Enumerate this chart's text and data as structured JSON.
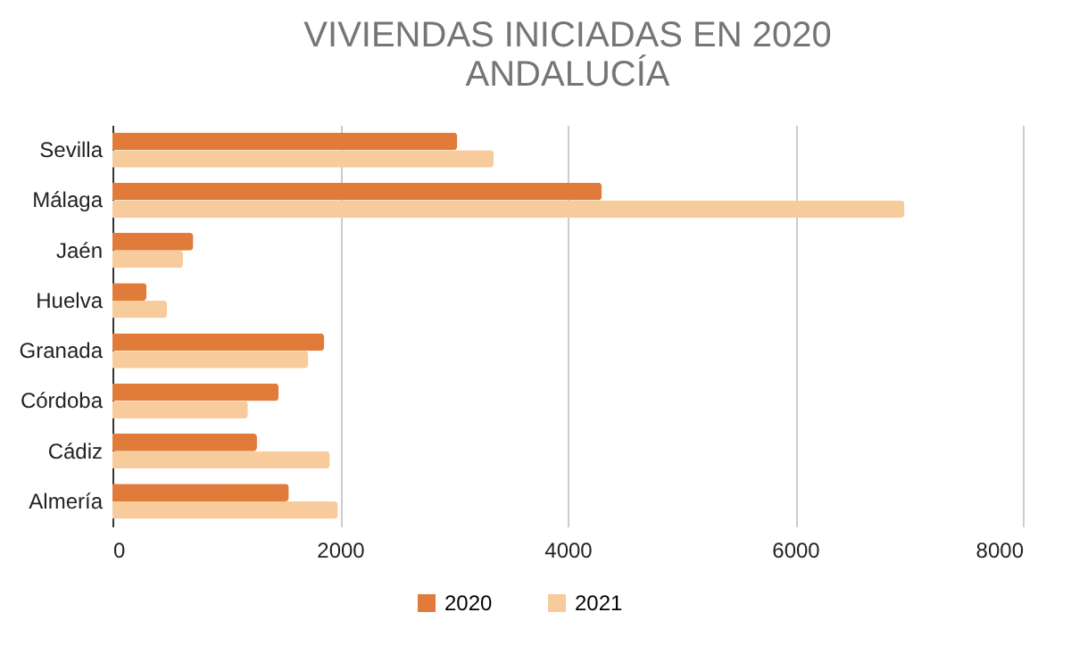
{
  "chart_data": {
    "type": "bar",
    "orientation": "horizontal",
    "title": "VIVIENDAS INICIADAS EN 2020\nANDALUCÍA",
    "categories": [
      "Sevilla",
      "Málaga",
      "Jaén",
      "Huelva",
      "Granada",
      "Córdoba",
      "Cádiz",
      "Almería"
    ],
    "series": [
      {
        "name": "2020",
        "color": "#e07b39",
        "values": [
          3030,
          4300,
          710,
          300,
          1860,
          1460,
          1270,
          1550
        ]
      },
      {
        "name": "2021",
        "color": "#f8cb9c",
        "values": [
          3350,
          6960,
          620,
          480,
          1720,
          1190,
          1910,
          1980
        ]
      }
    ],
    "xlim": [
      0,
      8000
    ],
    "xticks": [
      0,
      2000,
      4000,
      6000,
      8000
    ],
    "grid": "x",
    "legend": "bottom"
  }
}
